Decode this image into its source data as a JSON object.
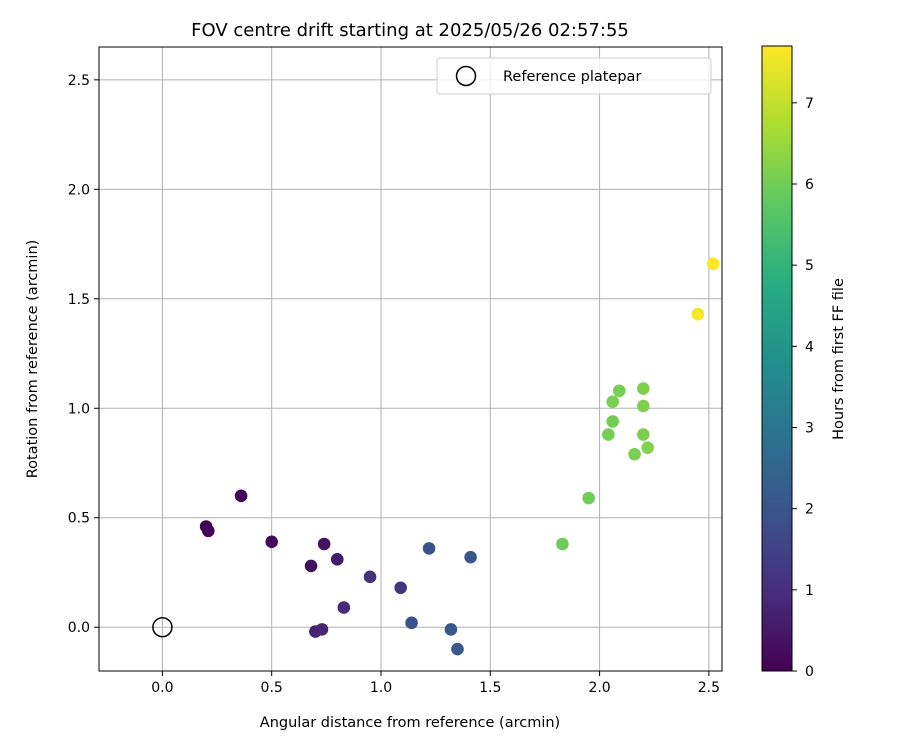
{
  "chart_data": {
    "type": "scatter",
    "title": "FOV centre drift starting at 2025/05/26 02:57:55",
    "xlabel": "Angular distance from reference (arcmin)",
    "ylabel": "Rotation from reference (arcmin)",
    "xlim": [
      -0.29,
      2.56
    ],
    "ylim": [
      -0.2,
      2.65
    ],
    "x_ticks": [
      "0.0",
      "0.5",
      "1.0",
      "1.5",
      "2.0",
      "2.5"
    ],
    "y_ticks": [
      "0.0",
      "0.5",
      "1.0",
      "1.5",
      "2.0",
      "2.5"
    ],
    "grid": true,
    "legend": {
      "position": "upper-right",
      "entries": [
        "Reference platepar"
      ]
    },
    "reference_point": {
      "x": 0.0,
      "y": 0.0
    },
    "colorbar": {
      "label": "Hours from first FF file",
      "min": 0,
      "max": 7.7,
      "ticks": [
        "0",
        "1",
        "2",
        "3",
        "4",
        "5",
        "6",
        "7"
      ],
      "colormap": "viridis"
    },
    "points": [
      {
        "x": 0.2,
        "y": 0.46,
        "hours": 0.0
      },
      {
        "x": 0.21,
        "y": 0.44,
        "hours": 0.05
      },
      {
        "x": 0.36,
        "y": 0.6,
        "hours": 0.1
      },
      {
        "x": 0.5,
        "y": 0.39,
        "hours": 0.2
      },
      {
        "x": 0.68,
        "y": 0.28,
        "hours": 0.3
      },
      {
        "x": 0.74,
        "y": 0.38,
        "hours": 0.4
      },
      {
        "x": 0.8,
        "y": 0.31,
        "hours": 0.55
      },
      {
        "x": 0.7,
        "y": -0.02,
        "hours": 0.7
      },
      {
        "x": 0.73,
        "y": -0.01,
        "hours": 0.8
      },
      {
        "x": 0.83,
        "y": 0.09,
        "hours": 0.95
      },
      {
        "x": 0.95,
        "y": 0.23,
        "hours": 1.1
      },
      {
        "x": 1.09,
        "y": 0.18,
        "hours": 1.25
      },
      {
        "x": 1.14,
        "y": 0.02,
        "hours": 1.9
      },
      {
        "x": 1.22,
        "y": 0.36,
        "hours": 2.0
      },
      {
        "x": 1.32,
        "y": -0.01,
        "hours": 2.05
      },
      {
        "x": 1.35,
        "y": -0.1,
        "hours": 2.1
      },
      {
        "x": 1.41,
        "y": 0.32,
        "hours": 2.1
      },
      {
        "x": 1.83,
        "y": 0.38,
        "hours": 5.95
      },
      {
        "x": 1.95,
        "y": 0.59,
        "hours": 6.0
      },
      {
        "x": 2.04,
        "y": 0.88,
        "hours": 6.05
      },
      {
        "x": 2.06,
        "y": 0.94,
        "hours": 6.05
      },
      {
        "x": 2.06,
        "y": 1.03,
        "hours": 6.1
      },
      {
        "x": 2.09,
        "y": 1.08,
        "hours": 6.1
      },
      {
        "x": 2.16,
        "y": 0.79,
        "hours": 6.1
      },
      {
        "x": 2.2,
        "y": 0.88,
        "hours": 6.15
      },
      {
        "x": 2.2,
        "y": 1.01,
        "hours": 6.15
      },
      {
        "x": 2.2,
        "y": 1.09,
        "hours": 6.15
      },
      {
        "x": 2.22,
        "y": 0.82,
        "hours": 6.2
      },
      {
        "x": 2.45,
        "y": 1.43,
        "hours": 7.6
      },
      {
        "x": 2.52,
        "y": 1.66,
        "hours": 7.7
      }
    ]
  }
}
